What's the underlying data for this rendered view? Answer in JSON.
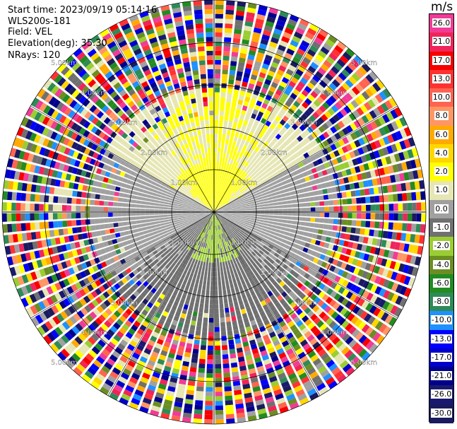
{
  "header": {
    "start_time": "Start time: 2023/09/19 05:14:16",
    "instrument": "WLS200s-181",
    "field": "Field: VEL",
    "elevation": "Elevation(deg): 35.30",
    "nrays": "NRays: 120"
  },
  "colorbar": {
    "title": "m/s",
    "ticks": [
      "26.0",
      "21.0",
      "17.0",
      "13.0",
      "10.0",
      "8.0",
      "6.0",
      "4.0",
      "2.0",
      "1.0",
      "0.0",
      "-1.0",
      "-2.0",
      "-4.0",
      "-6.0",
      "-8.0",
      "-10.0",
      "-13.0",
      "-17.0",
      "-21.0",
      "-26.0",
      "-30.0"
    ],
    "colors": [
      "#f03c96",
      "#f0245a",
      "#f80000",
      "#ff3232",
      "#ff6450",
      "#ff9664",
      "#ffaa00",
      "#ffd700",
      "#ffff00",
      "#e6e6b4",
      "#a0a0a0",
      "#707070",
      "#9acd32",
      "#6b8e23",
      "#228b22",
      "#2e8b57",
      "#1e90ff",
      "#0000ff",
      "#0000cd",
      "#00008b",
      "#191970",
      "#1a1a5e"
    ]
  },
  "chart_data": {
    "type": "ppi",
    "field": "VEL",
    "units": "m/s",
    "nrays": 120,
    "elevation_deg": 35.3,
    "range_ring_labels": [
      "1.00km",
      "2.00km",
      "3.00km",
      "4.00km",
      "5.00km"
    ],
    "ring_label_text": {
      "r1": "1.00km",
      "r2": "2.00km",
      "r3": "3.00km",
      "r4": "4.00km",
      "r5": "5.00km"
    },
    "vmin": -30.0,
    "vmax": 26.0
  }
}
